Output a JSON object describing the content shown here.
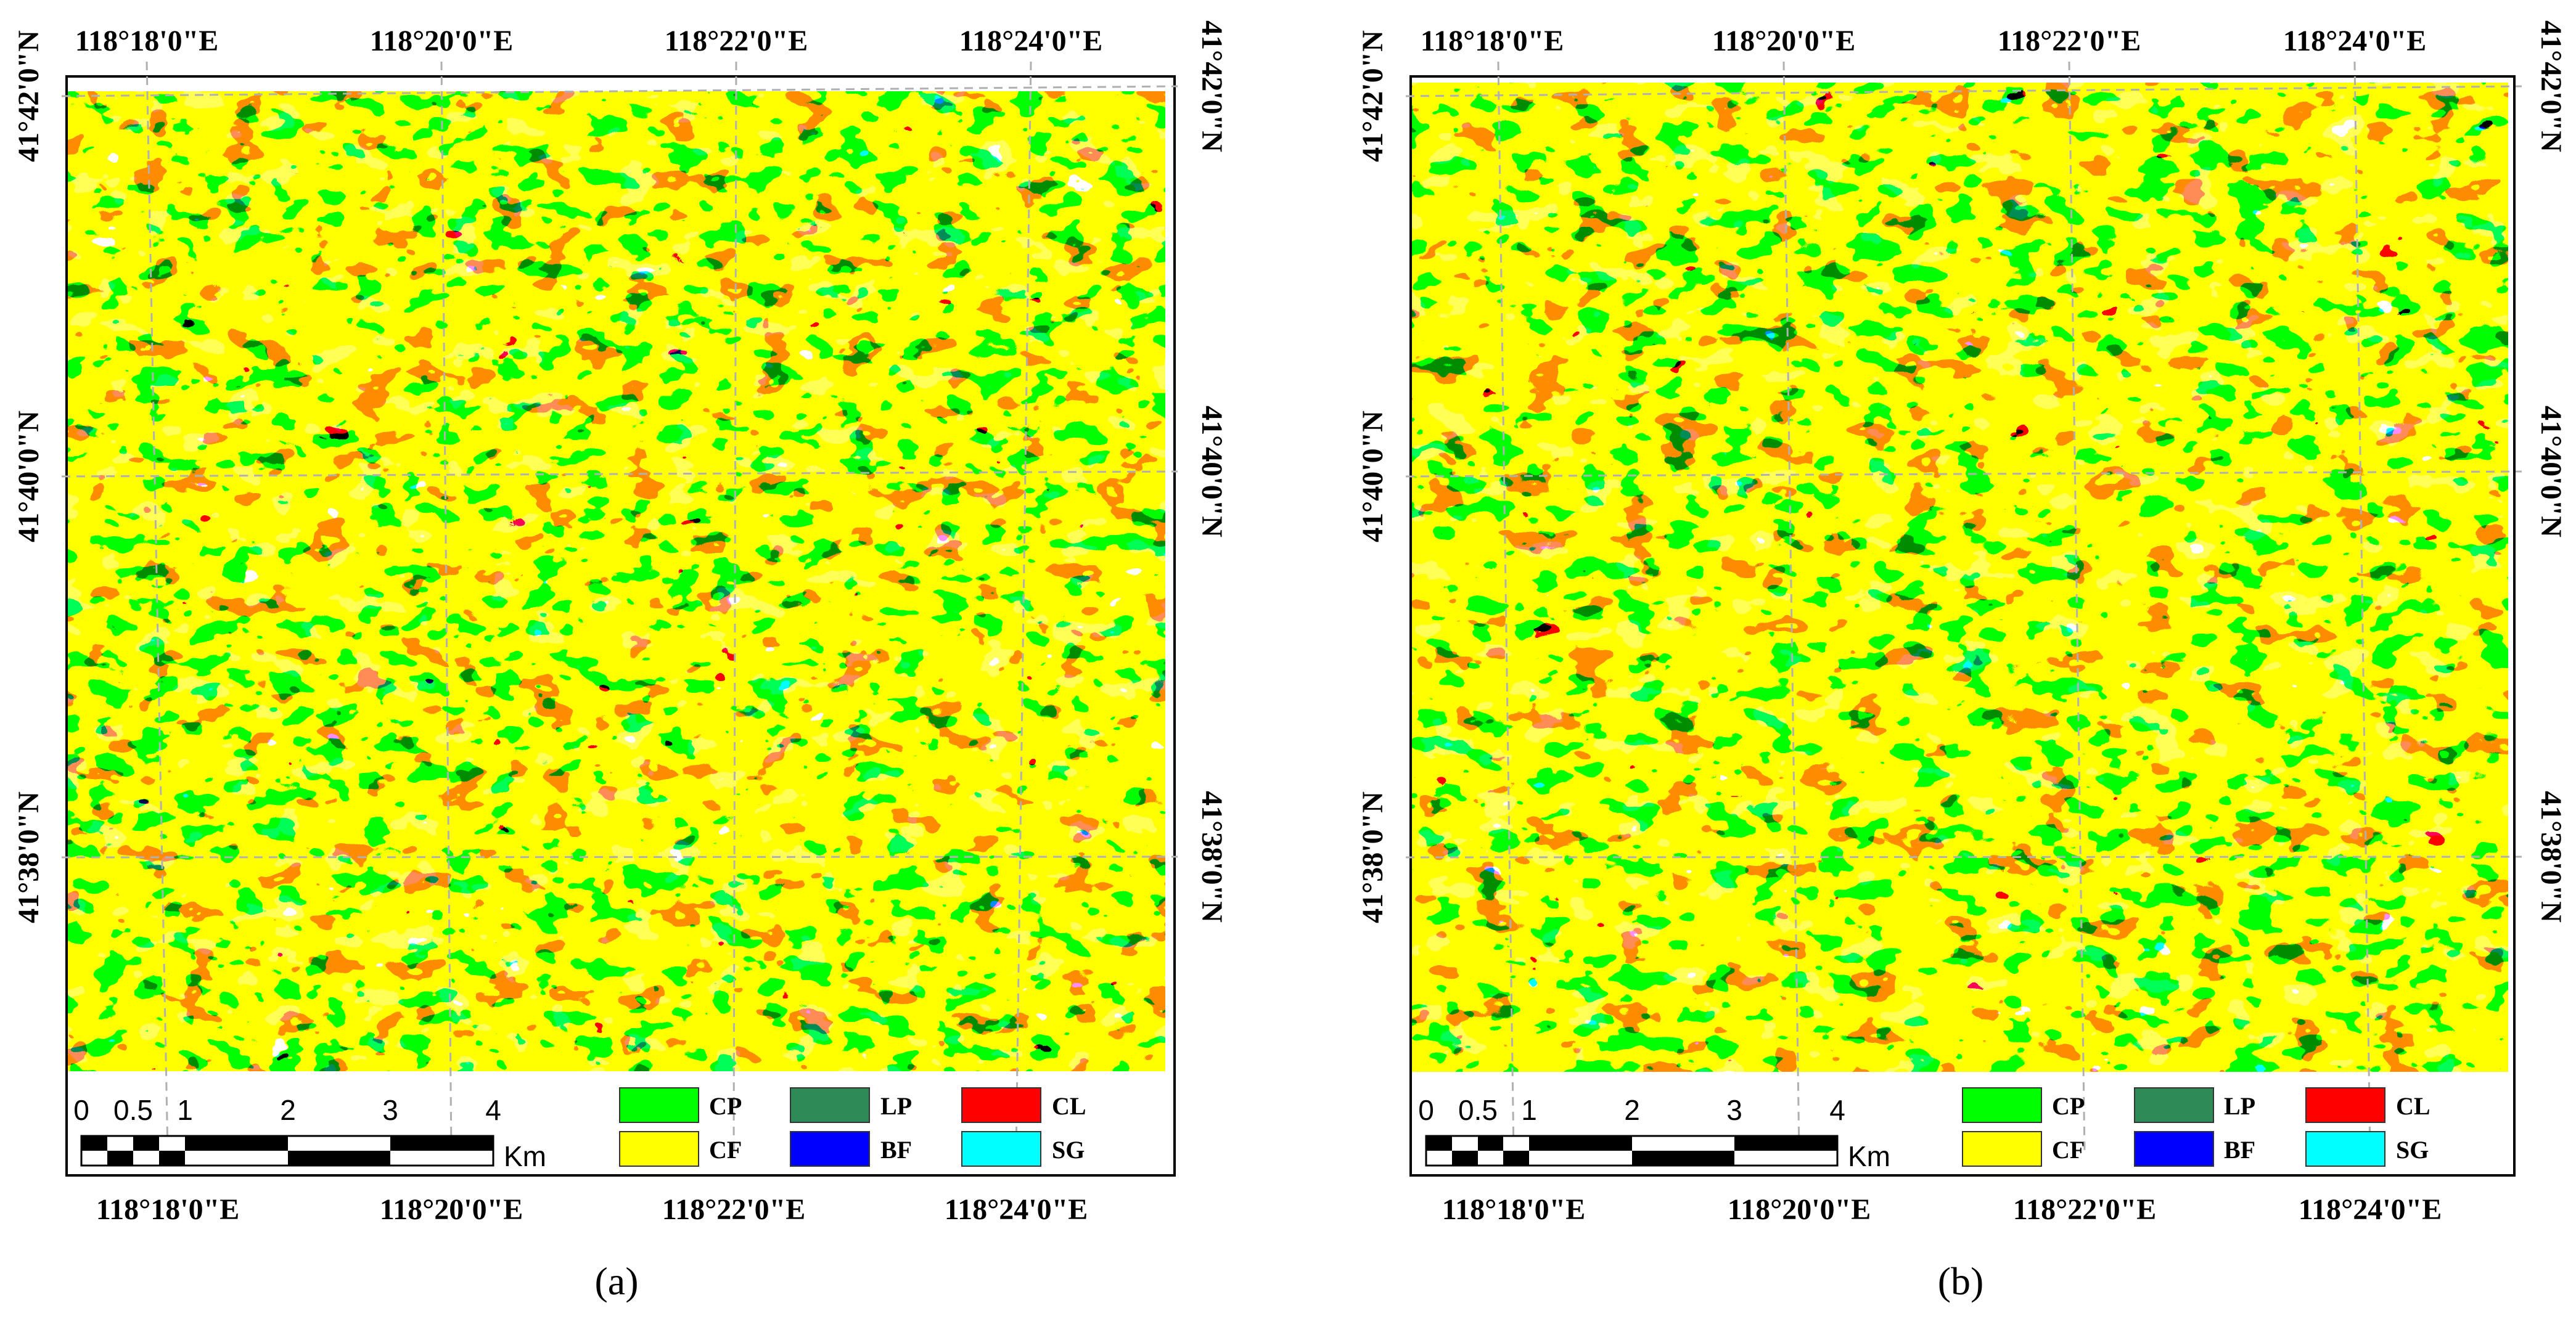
{
  "figure": {
    "panels": [
      {
        "id": "a",
        "caption": "(a)",
        "top_lon_labels": [
          "118°18'0\"E",
          "118°20'0\"E",
          "118°22'0\"E",
          "118°24'0\"E"
        ],
        "bottom_lon_labels": [
          "118°18'0\"E",
          "118°20'0\"E",
          "118°22'0\"E",
          "118°24'0\"E"
        ],
        "left_lat_labels": [
          "41°42'0\"N",
          "41°40'0\"N",
          "41°38'0\"N"
        ],
        "right_lat_labels": [
          "41°42'0\"N",
          "41°40'0\"N",
          "41°38'0\"N"
        ]
      },
      {
        "id": "b",
        "caption": "(b)",
        "top_lon_labels": [
          "118°18'0\"E",
          "118°20'0\"E",
          "118°22'0\"E",
          "118°24'0\"E"
        ],
        "bottom_lon_labels": [
          "118°18'0\"E",
          "118°20'0\"E",
          "118°22'0\"E",
          "118°24'0\"E"
        ],
        "left_lat_labels": [
          "41°42'0\"N",
          "41°40'0\"N",
          "41°38'0\"N"
        ],
        "right_lat_labels": [
          "41°42'0\"N",
          "41°40'0\"N",
          "41°38'0\"N"
        ]
      }
    ],
    "scale_bar": {
      "ticks": [
        "0",
        "0.5",
        "1",
        "2",
        "3",
        "4"
      ],
      "tick_values_km": [
        0,
        0.5,
        1,
        2,
        3,
        4
      ],
      "unit": "Km"
    },
    "legend": [
      {
        "code": "CP",
        "color": "#00ff00"
      },
      {
        "code": "CF",
        "color": "#ffff00"
      },
      {
        "code": "LP",
        "color": "#2e8b57"
      },
      {
        "code": "BF",
        "color": "#0000ff"
      },
      {
        "code": "CL",
        "color": "#ff0000"
      },
      {
        "code": "SG",
        "color": "#00ffff"
      }
    ]
  }
}
